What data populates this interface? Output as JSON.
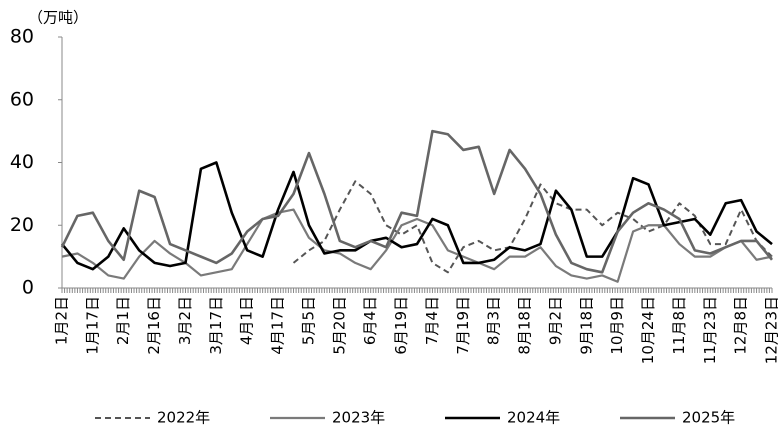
{
  "chart_data": {
    "type": "line",
    "y_label": "（万吨）",
    "categories": [
      "1月2日",
      null,
      "1月17日",
      null,
      "2月1日",
      null,
      "2月16日",
      null,
      "3月2日",
      null,
      "3月17日",
      null,
      "4月1日",
      null,
      "4月17日",
      null,
      "5月5日",
      null,
      "5月20日",
      null,
      "6月4日",
      null,
      "6月19日",
      null,
      "7月4日",
      null,
      "7月19日",
      null,
      "8月3日",
      null,
      "8月18日",
      null,
      "9月2日",
      null,
      "9月18日",
      null,
      "10月9日",
      null,
      "10月24日",
      null,
      "11月8日",
      null,
      "11月23日",
      null,
      "12月8日",
      null,
      "12月23日"
    ],
    "series": [
      {
        "name": "2022年",
        "color": "#555555",
        "dash": true,
        "values": [
          null,
          null,
          null,
          null,
          null,
          null,
          null,
          null,
          null,
          null,
          null,
          null,
          null,
          null,
          null,
          8,
          12,
          15,
          25,
          34,
          30,
          20,
          17,
          20,
          8,
          5,
          13,
          15,
          12,
          13,
          22,
          33,
          27,
          25,
          25,
          20,
          24,
          22,
          18,
          20,
          27,
          23,
          14,
          14,
          25,
          15,
          10
        ]
      },
      {
        "name": "2023年",
        "color": "#7a7a7a",
        "dash": false,
        "values": [
          10,
          11,
          8,
          4,
          3,
          10,
          15,
          11,
          8,
          4,
          5,
          6,
          14,
          22,
          24,
          25,
          16,
          12,
          11,
          8,
          6,
          12,
          20,
          22,
          20,
          12,
          10,
          8,
          6,
          10,
          10,
          13,
          7,
          4,
          3,
          4,
          2,
          18,
          20,
          20,
          14,
          10,
          10,
          13,
          15,
          9,
          10
        ]
      },
      {
        "name": "2024年",
        "color": "#000000",
        "dash": false,
        "values": [
          14,
          8,
          6,
          10,
          19,
          12,
          8,
          7,
          8,
          38,
          40,
          24,
          12,
          10,
          25,
          37,
          20,
          11,
          12,
          12,
          15,
          16,
          13,
          14,
          22,
          20,
          8,
          8,
          9,
          13,
          12,
          14,
          31,
          25,
          10,
          10,
          18,
          35,
          33,
          20,
          21,
          22,
          17,
          27,
          28,
          18,
          14
        ]
      },
      {
        "name": "2025年",
        "color": "#666666",
        "dash": false,
        "values": [
          13,
          23,
          24,
          15,
          9,
          31,
          29,
          14,
          12,
          10,
          8,
          11,
          18,
          22,
          23,
          30,
          43,
          30,
          15,
          13,
          15,
          13,
          24,
          23,
          50,
          49,
          44,
          45,
          30,
          44,
          38,
          30,
          17,
          8,
          6,
          5,
          18,
          24,
          27,
          25,
          22,
          12,
          11,
          13,
          15,
          15,
          9
        ]
      }
    ],
    "ylim": [
      0,
      80
    ],
    "yticks": [
      0,
      20,
      40,
      60,
      80
    ]
  }
}
